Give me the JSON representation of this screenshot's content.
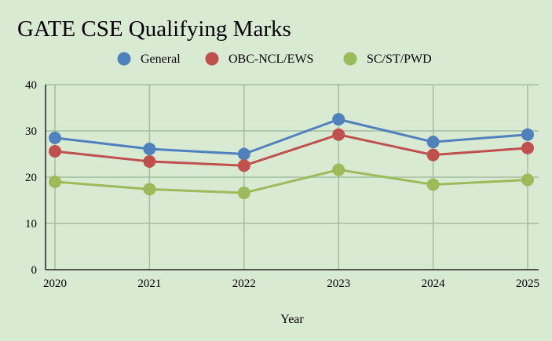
{
  "chart_data": {
    "type": "line",
    "title": "GATE CSE Qualifying Marks",
    "xlabel": "Year",
    "ylabel": "",
    "categories": [
      "2020",
      "2021",
      "2022",
      "2023",
      "2024",
      "2025"
    ],
    "ylim": [
      0,
      40
    ],
    "yticks": [
      0,
      10,
      20,
      30,
      40
    ],
    "grid": true,
    "legend_position": "top",
    "series": [
      {
        "name": "General",
        "color": "#4f81bd",
        "values": [
          28.5,
          26.1,
          25.0,
          32.5,
          27.6,
          29.2
        ]
      },
      {
        "name": "OBC-NCL/EWS",
        "color": "#c0504d",
        "values": [
          25.6,
          23.4,
          22.5,
          29.2,
          24.8,
          26.3
        ]
      },
      {
        "name": "SC/ST/PWD",
        "color": "#9bbb59",
        "values": [
          19.0,
          17.4,
          16.6,
          21.6,
          18.4,
          19.4
        ]
      }
    ]
  }
}
